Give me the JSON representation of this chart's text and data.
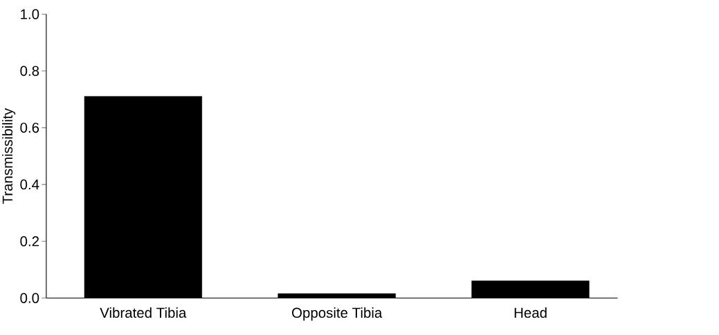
{
  "chart_data": {
    "type": "bar",
    "ylabel": "Transmissibility",
    "categories": [
      "Vibrated Tibia",
      "Opposite Tibia",
      "Head"
    ],
    "values": [
      0.711,
      0.016,
      0.061
    ],
    "color": "#000000",
    "ylim": [
      0,
      1.0
    ],
    "yticks": [
      {
        "value": 0,
        "label": "0.0"
      },
      {
        "value": 0.2,
        "label": "0.2"
      },
      {
        "value": 0.4,
        "label": "0.4"
      },
      {
        "value": 0.6,
        "label": "0.6"
      },
      {
        "value": 0.8,
        "label": "0.8"
      },
      {
        "value": 1.0,
        "label": "1.0"
      }
    ],
    "grid": false
  }
}
